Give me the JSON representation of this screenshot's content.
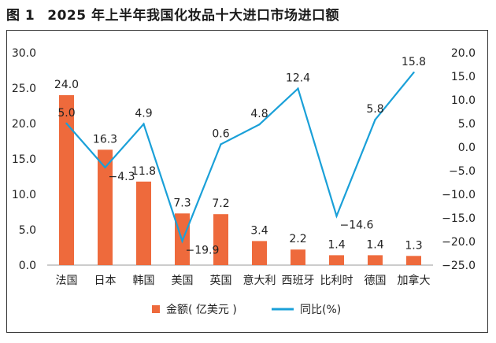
{
  "figure_label": "图 1",
  "title": "2025 年上半年我国化妆品十大进口市场进口额",
  "colors": {
    "bar": "#EE6A3C",
    "line": "#1AA0D8",
    "axis": "#999999",
    "text": "#222222"
  },
  "chart_data": {
    "type": "bar",
    "title": "2025 年上半年我国化妆品十大进口市场进口额",
    "categories": [
      "法国",
      "日本",
      "韩国",
      "美国",
      "英国",
      "意大利",
      "西班牙",
      "比利时",
      "德国",
      "加拿大"
    ],
    "series": [
      {
        "name": "金额( 亿美元 )",
        "type": "bar",
        "axis": "left",
        "values": [
          24.0,
          16.3,
          11.8,
          7.3,
          7.2,
          3.4,
          2.2,
          1.4,
          1.4,
          1.3
        ],
        "labels": [
          "24.0",
          "16.3",
          "11.8",
          "7.3",
          "7.2",
          "3.4",
          "2.2",
          "1.4",
          "1.4",
          "1.3"
        ]
      },
      {
        "name": "同比(%)",
        "type": "line",
        "axis": "right",
        "values": [
          5.0,
          -4.3,
          4.9,
          -19.9,
          0.6,
          4.8,
          12.4,
          -14.6,
          5.8,
          15.8
        ],
        "labels": [
          "5.0",
          "−4.3",
          "4.9",
          "−19.9",
          "0.6",
          "4.8",
          "12.4",
          "−14.6",
          "5.8",
          "15.8"
        ]
      }
    ],
    "y_left": {
      "min": 0,
      "max": 30,
      "ticks": [
        "0.0",
        "5.0",
        "10.0",
        "15.0",
        "20.0",
        "25.0",
        "30.0"
      ]
    },
    "y_right": {
      "min": -25,
      "max": 20,
      "ticks": [
        "−25.0",
        "−20.0",
        "−15.0",
        "−10.0",
        "−5.0",
        "0.0",
        "5.0",
        "10.0",
        "15.0",
        "20.0"
      ]
    },
    "grid": false,
    "legend_position": "bottom"
  }
}
